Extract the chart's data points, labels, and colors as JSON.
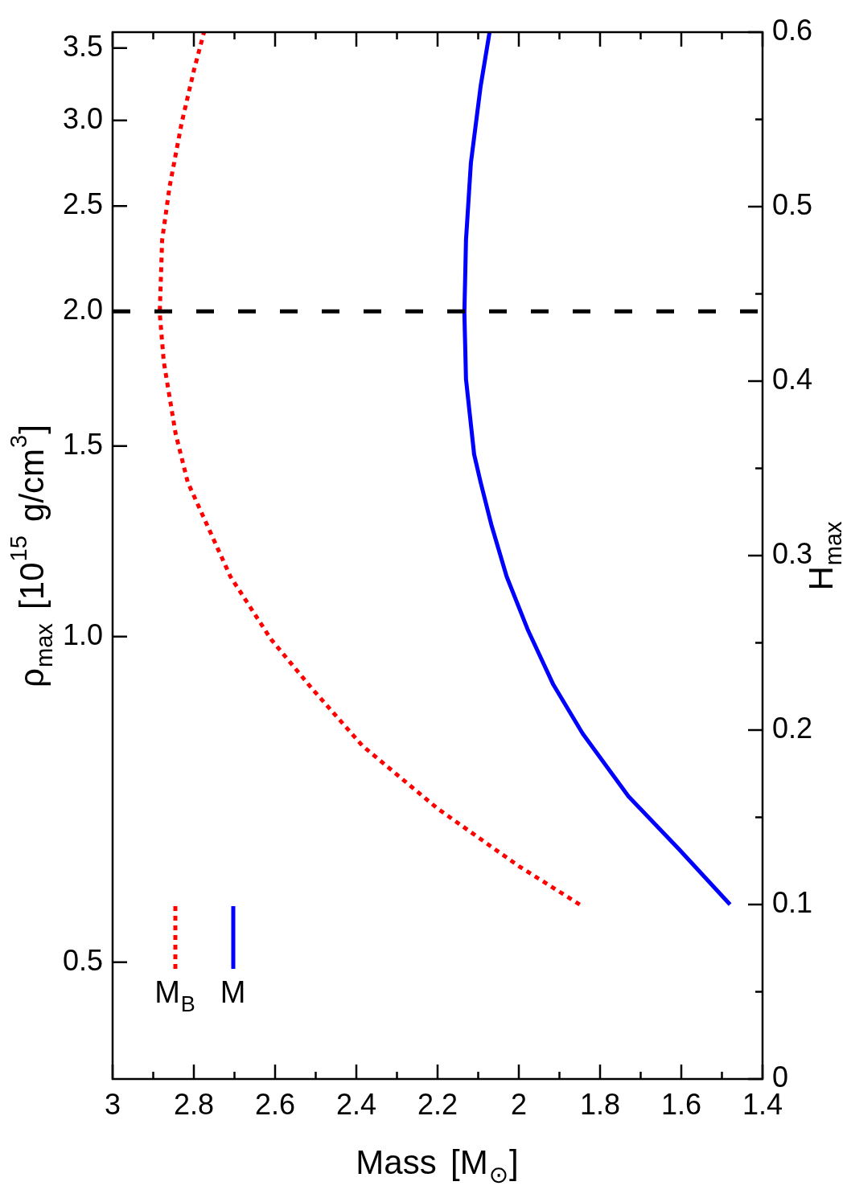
{
  "chart_data": {
    "type": "line",
    "xlabel": "Mass [M$_{⊙}$]",
    "ylabel": "ρ$_{max}$ [10$^{15}$ g/cm$^{3}$]",
    "y2label": "H$_{max}$",
    "xlim": [
      3,
      1.4
    ],
    "xticks": [
      3,
      {
        "value": 2.9,
        "label": null
      },
      2.8,
      {
        "value": 2.7,
        "label": null
      },
      2.6,
      {
        "value": 2.5,
        "label": null
      },
      2.4,
      {
        "value": 2.3,
        "label": null
      },
      2.2,
      {
        "value": 2.1,
        "label": null
      },
      2,
      {
        "value": 1.9,
        "label": null
      },
      1.8,
      {
        "value": 1.7,
        "label": null
      },
      1.6,
      {
        "value": 1.5,
        "label": null
      },
      1.4
    ],
    "log": "y",
    "ylim": [
      0.39,
      3.62
    ],
    "yticks": [
      0.5,
      {
        "value": 1,
        "label": "1.0"
      },
      1.5,
      {
        "value": 2,
        "label": "2.0"
      },
      2.5,
      {
        "value": 3,
        "label": "3.0"
      },
      3.5
    ],
    "y2lim": [
      0,
      0.6
    ],
    "y2ticks": [
      0,
      {
        "value": 0.05,
        "label": null
      },
      0.1,
      {
        "value": 0.15,
        "label": null
      },
      0.2,
      {
        "value": 0.25,
        "label": null
      },
      0.3,
      {
        "value": 0.35,
        "label": null
      },
      0.4,
      {
        "value": 0.45,
        "label": null
      },
      0.5,
      {
        "value": 0.55,
        "label": null
      },
      0.6
    ],
    "grid": false,
    "legend": "bottom left",
    "marker": "none",
    "ref_lines": [
      {
        "axis": "y2",
        "value": 0.44,
        "color": "#000000",
        "line_style": "dashed"
      }
    ],
    "series": [
      {
        "name": "M$_{B}$",
        "color": "#ff0000",
        "line_style": "dotted",
        "axis": "y2",
        "x": [
          1.85,
          2.0,
          2.2,
          2.385,
          2.51,
          2.61,
          2.71,
          2.815,
          2.845,
          2.874,
          2.884,
          2.878,
          2.86,
          2.83,
          2.8,
          2.775
        ],
        "values": [
          0.1,
          0.122,
          0.155,
          0.191,
          0.224,
          0.252,
          0.288,
          0.342,
          0.37,
          0.411,
          0.439,
          0.481,
          0.511,
          0.548,
          0.578,
          0.6
        ]
      },
      {
        "name": "M",
        "color": "#0000ff",
        "line_style": "solid",
        "axis": "y2",
        "x": [
          1.48,
          1.607,
          1.73,
          1.843,
          1.915,
          1.977,
          2.03,
          2.068,
          2.094,
          2.11,
          2.13,
          2.134,
          2.13,
          2.118,
          2.094,
          2.072
        ],
        "values": [
          0.1,
          0.132,
          0.162,
          0.198,
          0.226,
          0.257,
          0.288,
          0.318,
          0.342,
          0.358,
          0.401,
          0.439,
          0.481,
          0.525,
          0.569,
          0.6
        ]
      }
    ]
  }
}
